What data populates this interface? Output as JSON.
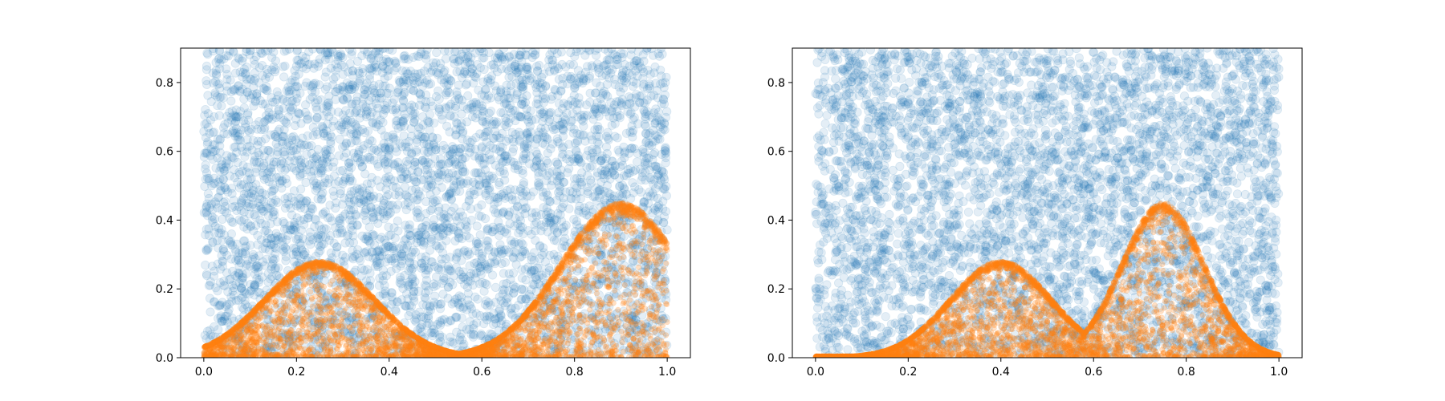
{
  "colors": {
    "background_points": "#1f77b4",
    "target_points": "#ff7f0e",
    "axes": "#000000"
  },
  "chart_data": [
    {
      "type": "scatter",
      "title": "",
      "xlabel": "",
      "ylabel": "",
      "xlim": [
        -0.05,
        1.05
      ],
      "ylim": [
        0,
        0.9
      ],
      "xticks": [
        0.0,
        0.2,
        0.4,
        0.6,
        0.8,
        1.0
      ],
      "xtick_labels": [
        "0.0",
        "0.2",
        "0.4",
        "0.6",
        "0.8",
        "1.0"
      ],
      "yticks": [
        0.0,
        0.2,
        0.4,
        0.6,
        0.8
      ],
      "ytick_labels": [
        "0.0",
        "0.2",
        "0.4",
        "0.6",
        "0.8"
      ],
      "grid": false,
      "series": [
        {
          "kind": "uniform-cloud",
          "color": "#1f77b4",
          "alpha": 0.12,
          "x_range": [
            0,
            1
          ],
          "y_range": [
            0,
            0.9
          ],
          "approx_points": 4800
        },
        {
          "kind": "mixture-density-band",
          "color": "#ff7f0e",
          "alpha": 0.25,
          "peaks": [
            {
              "x": 0.25,
              "y": 0.28
            },
            {
              "x": 0.9,
              "y": 0.45
            }
          ],
          "trough": {
            "x": 0.55,
            "y": 0.015
          },
          "approx_points": 4800
        }
      ]
    },
    {
      "type": "scatter",
      "title": "",
      "xlabel": "",
      "ylabel": "",
      "xlim": [
        -0.05,
        1.05
      ],
      "ylim": [
        0,
        0.9
      ],
      "xticks": [
        0.0,
        0.2,
        0.4,
        0.6,
        0.8,
        1.0
      ],
      "xtick_labels": [
        "0.0",
        "0.2",
        "0.4",
        "0.6",
        "0.8",
        "1.0"
      ],
      "yticks": [
        0.0,
        0.2,
        0.4,
        0.6,
        0.8
      ],
      "ytick_labels": [
        "0.0",
        "0.2",
        "0.4",
        "0.6",
        "0.8"
      ],
      "grid": false,
      "series": [
        {
          "kind": "uniform-cloud",
          "color": "#1f77b4",
          "alpha": 0.12,
          "x_range": [
            0,
            1
          ],
          "y_range": [
            0,
            0.9
          ],
          "approx_points": 4800
        },
        {
          "kind": "mixture-density-band",
          "color": "#ff7f0e",
          "alpha": 0.25,
          "peaks": [
            {
              "x": 0.4,
              "y": 0.28
            },
            {
              "x": 0.75,
              "y": 0.45
            }
          ],
          "trough": {
            "x": 0.58,
            "y": 0.09
          },
          "approx_points": 4800
        }
      ]
    }
  ]
}
